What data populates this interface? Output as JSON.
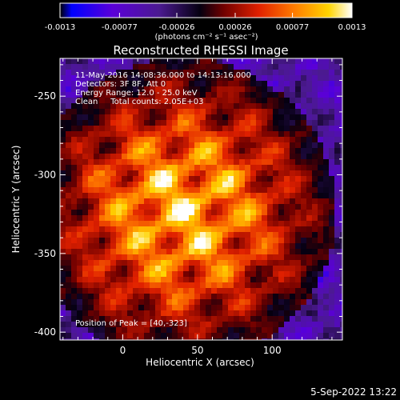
{
  "chart_data": {
    "type": "heatmap",
    "title": "Reconstructed RHESSI Image",
    "xlabel": "Heliocentric X (arcsec)",
    "ylabel": "Heliocentric Y (arcsec)",
    "xlim": [
      -42,
      147
    ],
    "ylim": [
      -405,
      -226
    ],
    "x_ticks": [
      0,
      50,
      100
    ],
    "x_tick_labels": [
      "0",
      "50",
      "100"
    ],
    "y_ticks": [
      -250,
      -300,
      -350,
      -400
    ],
    "y_tick_labels": [
      "-250",
      "-300",
      "-350",
      "-400"
    ],
    "colorbar": {
      "min": -0.0013,
      "max": 0.0013,
      "ticks": [
        -0.0013,
        -0.00077,
        -0.00026,
        0.00026,
        0.00077,
        0.0013
      ],
      "tick_labels": [
        "-0.0013",
        "-0.00077",
        "-0.00026",
        "0.00026",
        "0.00077",
        "0.0013"
      ],
      "unit_label": "(photons cm⁻² s⁻¹ asec⁻²)",
      "colormap": [
        "#000000",
        "#0000ff",
        "#7b00c8",
        "#4b1a90",
        "#000000",
        "#8a0000",
        "#e62000",
        "#ff8000",
        "#ffd000",
        "#ffffff"
      ]
    },
    "peak": [
      40,
      -323
    ],
    "grid": false,
    "info_lines": [
      "11-May-2016 14:08:36.000 to 14:13:16.000",
      "Detectors: 3F 8F, Att 0",
      "Energy Range: 12.0 - 25.0 keV",
      "Clean     Total counts: 2.05E+03"
    ],
    "peak_label": "Position of Peak = [40,-323]"
  },
  "footer": {
    "timestamp": "5-Sep-2022 13:22"
  }
}
